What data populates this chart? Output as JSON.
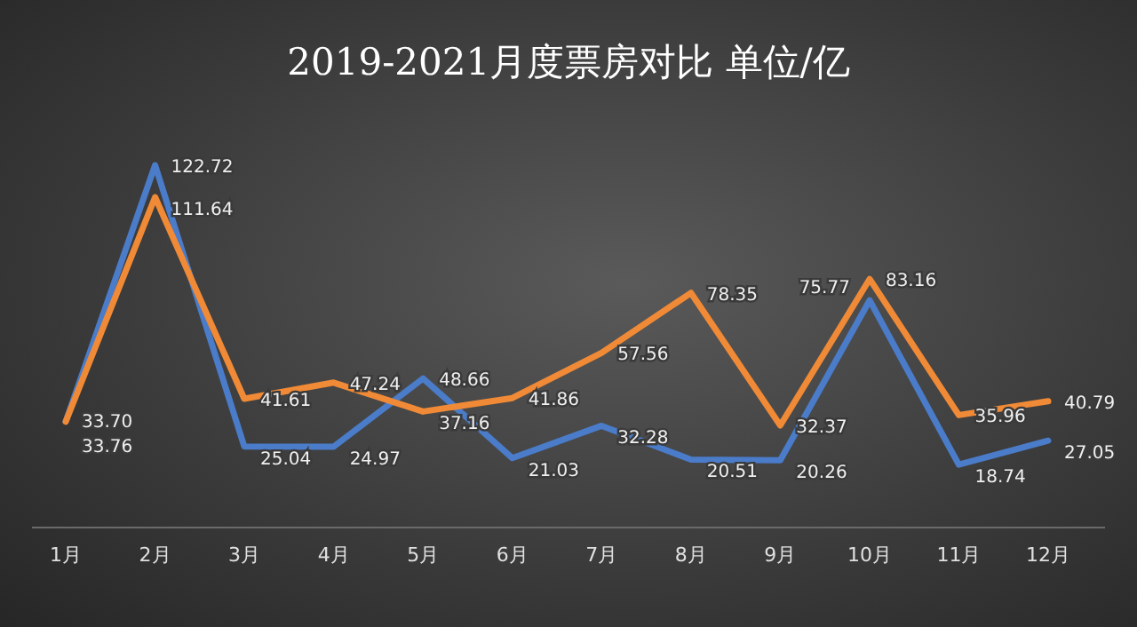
{
  "chart_data": {
    "type": "line",
    "title": "2019-2021月度票房对比 单位/亿",
    "categories": [
      "1月",
      "2月",
      "3月",
      "4月",
      "5月",
      "6月",
      "7月",
      "8月",
      "9月",
      "10月",
      "11月",
      "12月"
    ],
    "series": [
      {
        "color": "#4a7cc9",
        "values": [
          33.76,
          122.72,
          25.04,
          24.97,
          48.66,
          21.03,
          32.28,
          20.51,
          20.26,
          75.77,
          18.74,
          27.05
        ],
        "value_labels": [
          "33.76",
          "122.72",
          "25.04",
          "24.97",
          "48.66",
          "21.03",
          "32.28",
          "20.51",
          "20.26",
          "75.77",
          "18.74",
          "27.05"
        ]
      },
      {
        "color": "#f08a36",
        "values": [
          33.7,
          111.64,
          41.61,
          47.24,
          37.16,
          41.86,
          57.56,
          78.35,
          32.37,
          83.16,
          35.96,
          40.79
        ],
        "value_labels": [
          "33.70",
          "111.64",
          "41.61",
          "47.24",
          "37.16",
          "41.86",
          "57.56",
          "78.35",
          "32.37",
          "83.16",
          "35.96",
          "40.79"
        ]
      }
    ],
    "marker": "none",
    "line_style": "solid"
  }
}
